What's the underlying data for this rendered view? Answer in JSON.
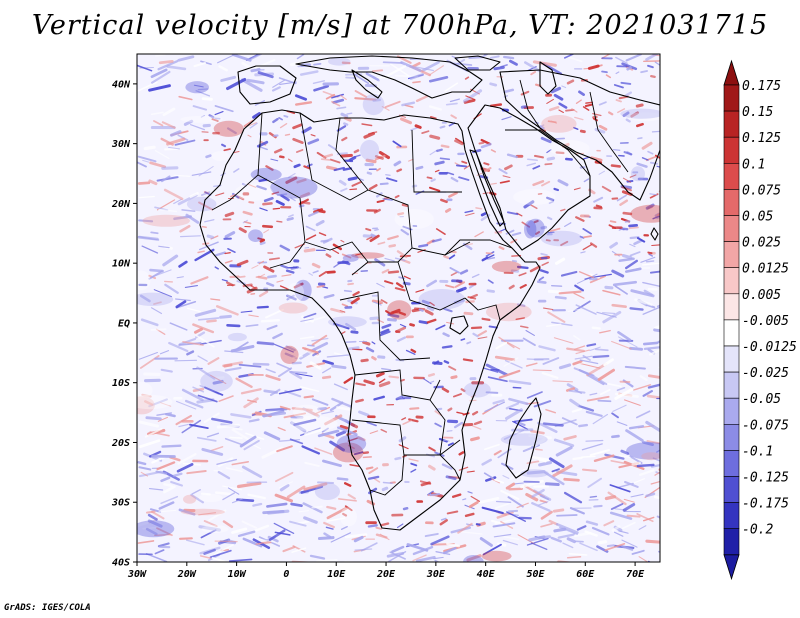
{
  "title": "Vertical velocity [m/s] at 700hPa, VT: 2021031715",
  "credit": "GrADS: IGES/COLA",
  "map": {
    "lon_range": [
      -30,
      75
    ],
    "lat_range": [
      -40,
      45
    ],
    "lat_ticks": [
      {
        "value": 40,
        "label": "40N"
      },
      {
        "value": 30,
        "label": "30N"
      },
      {
        "value": 20,
        "label": "20N"
      },
      {
        "value": 10,
        "label": "10N"
      },
      {
        "value": 0,
        "label": "EQ"
      },
      {
        "value": -10,
        "label": "10S"
      },
      {
        "value": -20,
        "label": "20S"
      },
      {
        "value": -30,
        "label": "30S"
      },
      {
        "value": -40,
        "label": "40S"
      }
    ],
    "lon_ticks": [
      {
        "value": -30,
        "label": "30W"
      },
      {
        "value": -20,
        "label": "20W"
      },
      {
        "value": -10,
        "label": "10W"
      },
      {
        "value": 0,
        "label": "0"
      },
      {
        "value": 10,
        "label": "10E"
      },
      {
        "value": 20,
        "label": "20E"
      },
      {
        "value": 30,
        "label": "30E"
      },
      {
        "value": 40,
        "label": "40E"
      },
      {
        "value": 50,
        "label": "50E"
      },
      {
        "value": 60,
        "label": "60E"
      },
      {
        "value": 70,
        "label": "70E"
      }
    ]
  },
  "colorbar": {
    "levels": [
      {
        "label": "0.175",
        "color": "#a01818"
      },
      {
        "label": "0.15",
        "color": "#b82424"
      },
      {
        "label": "0.125",
        "color": "#cc3434"
      },
      {
        "label": "0.1",
        "color": "#dc4c4c"
      },
      {
        "label": "0.075",
        "color": "#e46a6a"
      },
      {
        "label": "0.05",
        "color": "#ec8888"
      },
      {
        "label": "0.025",
        "color": "#f2a6a6"
      },
      {
        "label": "0.0125",
        "color": "#f8c8c8"
      },
      {
        "label": "0.005",
        "color": "#fce6e6"
      },
      {
        "label": "-0.005",
        "color": "#ffffff"
      },
      {
        "label": "-0.0125",
        "color": "#e4e4fa"
      },
      {
        "label": "-0.025",
        "color": "#c8c8f4"
      },
      {
        "label": "-0.05",
        "color": "#aaaaee"
      },
      {
        "label": "-0.075",
        "color": "#8c8ce6"
      },
      {
        "label": "-0.1",
        "color": "#6e6ede"
      },
      {
        "label": "-0.125",
        "color": "#5050d2"
      },
      {
        "label": "-0.175",
        "color": "#3434c0"
      },
      {
        "label": "-0.2",
        "color": "#2020a8"
      }
    ],
    "top_color": "#8c1010",
    "bottom_color": "#1c1ca0"
  },
  "field_colors": {
    "background": "#f4f3ff",
    "ascent_strong": "#d03030",
    "ascent_weak": "#ee9a9a",
    "descent_strong": "#4a4ad6",
    "descent_weak": "#a8a8ee",
    "coast": "#000000"
  }
}
